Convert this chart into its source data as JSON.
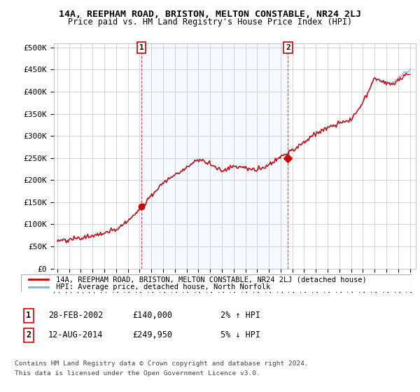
{
  "title": "14A, REEPHAM ROAD, BRISTON, MELTON CONSTABLE, NR24 2LJ",
  "subtitle": "Price paid vs. HM Land Registry's House Price Index (HPI)",
  "ylabel_ticks": [
    0,
    50000,
    100000,
    150000,
    200000,
    250000,
    300000,
    350000,
    400000,
    450000,
    500000
  ],
  "ylabel_labels": [
    "£0",
    "£50K",
    "£100K",
    "£150K",
    "£200K",
    "£250K",
    "£300K",
    "£350K",
    "£400K",
    "£450K",
    "£500K"
  ],
  "ylim": [
    0,
    510000
  ],
  "xlim_start": 1994.7,
  "xlim_end": 2025.5,
  "hpi_color": "#7ab4e0",
  "price_color": "#cc0000",
  "shade_color": "#ddeeff",
  "marker_color": "#cc0000",
  "background_color": "#ffffff",
  "grid_color": "#cccccc",
  "legend_label_red": "14A, REEPHAM ROAD, BRISTON, MELTON CONSTABLE, NR24 2LJ (detached house)",
  "legend_label_blue": "HPI: Average price, detached house, North Norfolk",
  "sale1_label": "1",
  "sale1_date": "28-FEB-2002",
  "sale1_price": "£140,000",
  "sale1_hpi": "2% ↑ HPI",
  "sale1_x": 2002.167,
  "sale1_y": 140000,
  "sale2_label": "2",
  "sale2_date": "12-AUG-2014",
  "sale2_price": "£249,950",
  "sale2_hpi": "5% ↓ HPI",
  "sale2_x": 2014.625,
  "sale2_y": 249950,
  "footnote1": "Contains HM Land Registry data © Crown copyright and database right 2024.",
  "footnote2": "This data is licensed under the Open Government Licence v3.0.",
  "xticks": [
    1995,
    1996,
    1997,
    1998,
    1999,
    2000,
    2001,
    2002,
    2003,
    2004,
    2005,
    2006,
    2007,
    2008,
    2009,
    2010,
    2011,
    2012,
    2013,
    2014,
    2015,
    2016,
    2017,
    2018,
    2019,
    2020,
    2021,
    2022,
    2023,
    2024,
    2025
  ]
}
